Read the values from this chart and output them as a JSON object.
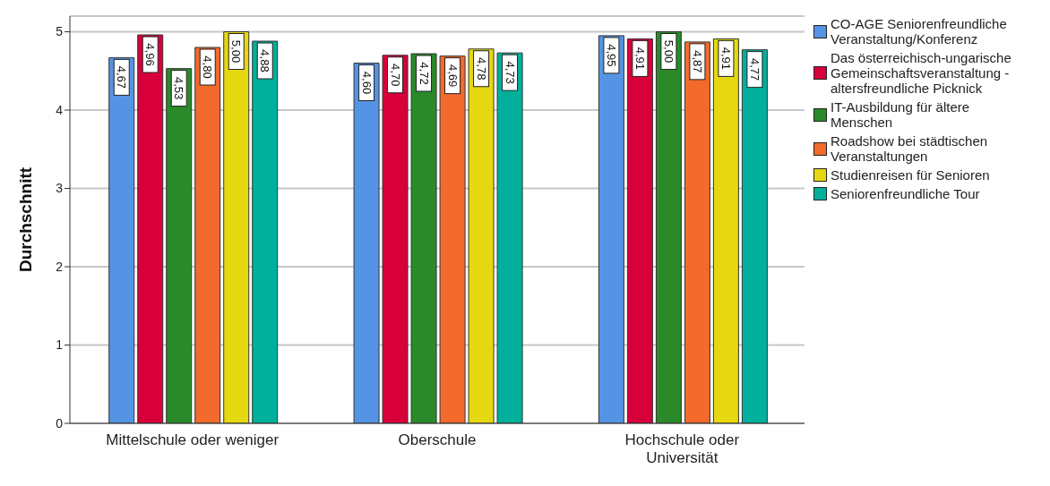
{
  "chart_data": {
    "type": "bar",
    "ylabel": "Durchschnitt",
    "categories": [
      "Mittelschule oder weniger",
      "Oberschule",
      "Hochschule oder Universität"
    ],
    "series": [
      {
        "name": "CO-AGE Seniorenfreundliche Veranstaltung/Konferenz",
        "color": "#5594e4",
        "values": [
          4.67,
          4.6,
          4.95
        ],
        "value_labels": [
          "4,67",
          "4,60",
          "4,95"
        ]
      },
      {
        "name": "Das österreichisch-ungarische Gemeinschaftsveranstaltung - altersfreundliche Picknick",
        "color": "#d8003a",
        "values": [
          4.96,
          4.7,
          4.91
        ],
        "value_labels": [
          "4,96",
          "4,70",
          "4,91"
        ]
      },
      {
        "name": "IT-Ausbildung für ältere Menschen",
        "color": "#2a8a2a",
        "values": [
          4.53,
          4.72,
          5.0
        ],
        "value_labels": [
          "4,53",
          "4,72",
          "5,00"
        ]
      },
      {
        "name": "Roadshow bei städtischen Veranstaltungen",
        "color": "#f26a2c",
        "values": [
          4.8,
          4.69,
          4.87
        ],
        "value_labels": [
          "4,80",
          "4,69",
          "4,87"
        ]
      },
      {
        "name": "Studienreisen für Senioren",
        "color": "#e6d810",
        "values": [
          5.0,
          4.78,
          4.91
        ],
        "value_labels": [
          "5,00",
          "4,78",
          "4,91"
        ]
      },
      {
        "name": "Seniorenfreundliche Tour",
        "color": "#00b09c",
        "values": [
          4.88,
          4.73,
          4.77
        ],
        "value_labels": [
          "4,88",
          "4,73",
          "4,77"
        ]
      }
    ],
    "ylim": [
      0,
      5.2
    ],
    "yticks": [
      0,
      1,
      2,
      3,
      4,
      5
    ],
    "grid": "y",
    "legend": "right"
  }
}
